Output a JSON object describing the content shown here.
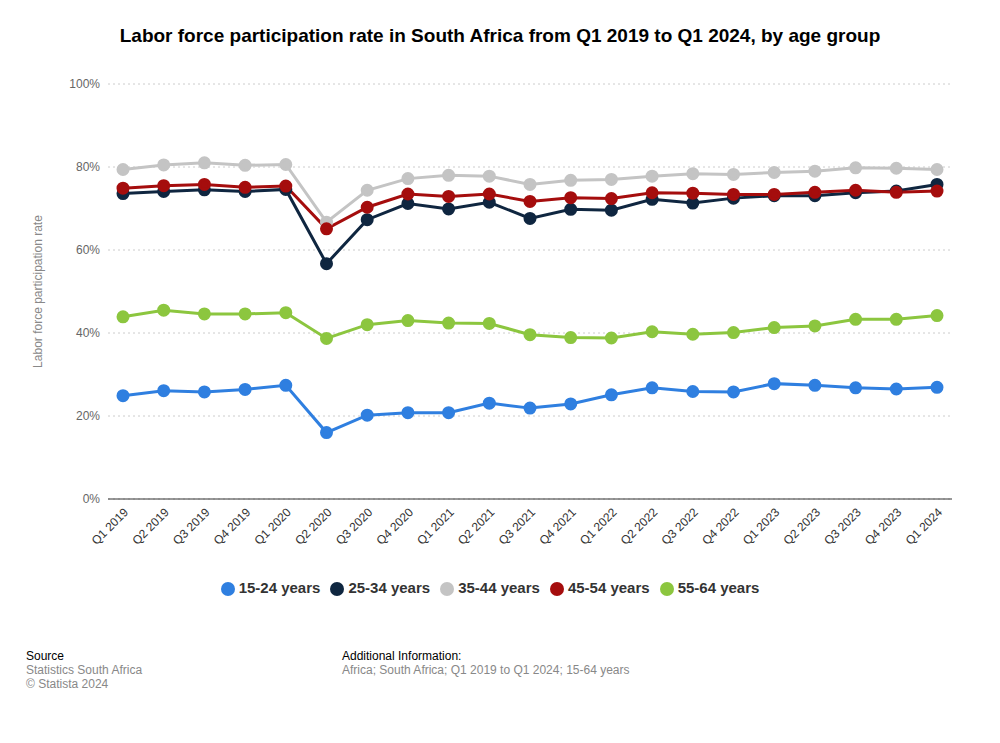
{
  "chart_data": {
    "type": "line",
    "title": "Labor force participation rate in South Africa from Q1 2019 to Q1 2024, by age group",
    "y_label": "Labor force participation rate",
    "categories": [
      "Q1 2019",
      "Q2 2019",
      "Q3 2019",
      "Q4 2019",
      "Q1 2020",
      "Q2 2020",
      "Q3 2020",
      "Q4 2020",
      "Q1 2021",
      "Q2 2021",
      "Q3 2021",
      "Q4 2021",
      "Q1 2022",
      "Q2 2022",
      "Q3 2022",
      "Q4 2022",
      "Q1 2023",
      "Q2 2023",
      "Q3 2023",
      "Q4 2023",
      "Q1 2024"
    ],
    "series": [
      {
        "name": "15-24 years",
        "color": "#2f7fe0",
        "values": [
          24.9,
          26.1,
          25.8,
          26.4,
          27.4,
          16.0,
          20.2,
          20.8,
          20.8,
          23.1,
          21.9,
          22.9,
          25.1,
          26.8,
          25.9,
          25.8,
          27.8,
          27.4,
          26.8,
          26.5,
          26.9
        ]
      },
      {
        "name": "25-34 years",
        "color": "#0f2640",
        "values": [
          73.6,
          74.1,
          74.5,
          74.1,
          74.6,
          56.7,
          67.3,
          71.2,
          69.9,
          71.5,
          67.6,
          69.8,
          69.6,
          72.2,
          71.3,
          72.5,
          73.1,
          73.1,
          73.8,
          74.2,
          75.8
        ]
      },
      {
        "name": "35-44 years",
        "color": "#c4c4c4",
        "values": [
          79.4,
          80.5,
          81.0,
          80.4,
          80.6,
          66.7,
          74.4,
          77.2,
          78.0,
          77.8,
          75.8,
          76.8,
          77.0,
          77.8,
          78.4,
          78.2,
          78.7,
          79.0,
          79.8,
          79.7,
          79.4
        ]
      },
      {
        "name": "45-54 years",
        "color": "#a50d0d",
        "values": [
          74.9,
          75.5,
          75.8,
          75.1,
          75.4,
          65.1,
          70.3,
          73.5,
          72.9,
          73.5,
          71.7,
          72.6,
          72.4,
          73.8,
          73.7,
          73.4,
          73.4,
          73.9,
          74.4,
          73.9,
          74.2
        ]
      },
      {
        "name": "55-64 years",
        "color": "#8cc63f",
        "values": [
          43.9,
          45.5,
          44.6,
          44.6,
          44.9,
          38.7,
          42.0,
          43.0,
          42.4,
          42.3,
          39.6,
          38.9,
          38.8,
          40.3,
          39.7,
          40.1,
          41.3,
          41.7,
          43.3,
          43.3,
          44.2
        ]
      }
    ],
    "ylim": [
      0,
      100
    ],
    "yticks": [
      {
        "value": 0,
        "label": "0%"
      },
      {
        "value": 20,
        "label": "20%"
      },
      {
        "value": 40,
        "label": "40%"
      },
      {
        "value": 60,
        "label": "60%"
      },
      {
        "value": 80,
        "label": "80%"
      },
      {
        "value": 100,
        "label": "100%"
      }
    ],
    "grid": true,
    "legend": "bottom",
    "marker": "circle",
    "source_label": "Source",
    "source": "Statistics South Africa",
    "copyright": "© Statista 2024",
    "info_label": "Additional Information:",
    "info": "Africa; South Africa; Q1 2019 to Q1 2024; 15-64 years"
  }
}
